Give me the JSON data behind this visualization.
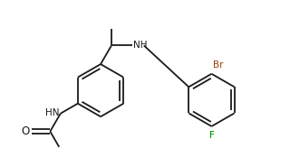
{
  "bg_color": "#ffffff",
  "bond_color": "#1a1a1a",
  "label_color": "#1a1a1a",
  "o_color": "#1a1a1a",
  "br_color": "#8B4513",
  "f_color": "#008000",
  "line_width": 1.3,
  "font_size": 7.5,
  "figsize": [
    3.2,
    1.85
  ],
  "dpi": 100,
  "xlim": [
    0,
    10
  ],
  "ylim": [
    0,
    6
  ]
}
